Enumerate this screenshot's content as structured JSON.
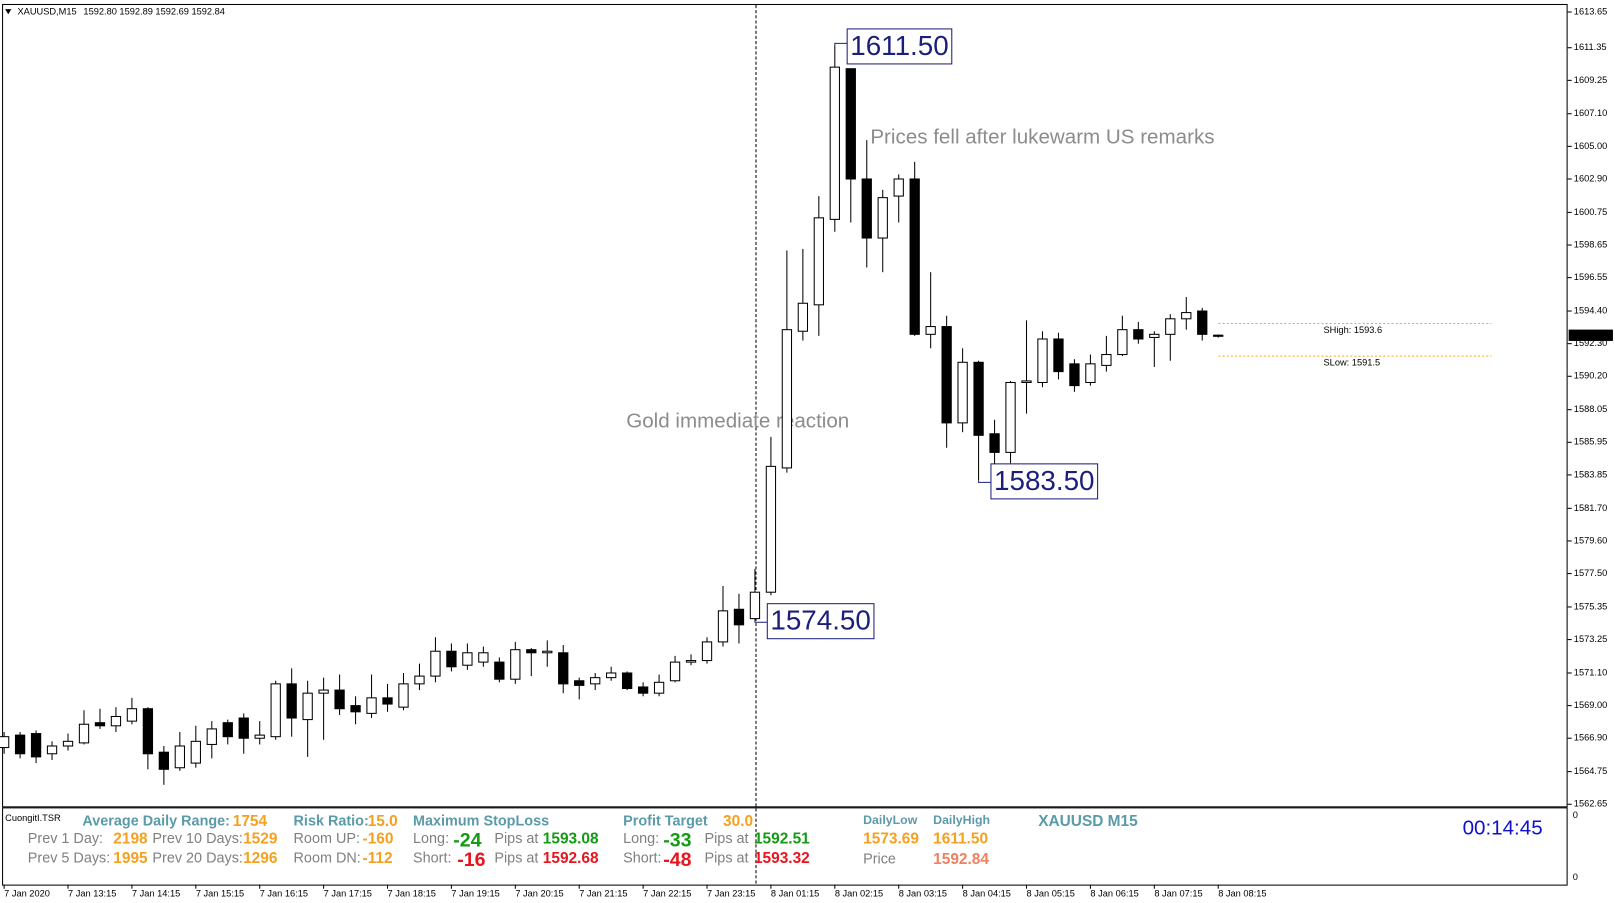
{
  "header": {
    "symbol": "XAUUSD,M15",
    "ohlc": "1592.80 1592.89 1592.69 1592.84"
  },
  "chart_data": {
    "type": "candlestick",
    "categories": [
      "7 Jan 2020",
      null,
      null,
      null,
      "7 Jan 13:15",
      null,
      null,
      null,
      "7 Jan 14:15",
      null,
      null,
      null,
      "7 Jan 15:15",
      null,
      null,
      null,
      "7 Jan 16:15",
      null,
      null,
      null,
      "7 Jan 17:15",
      null,
      null,
      null,
      "7 Jan 18:15",
      null,
      null,
      null,
      "7 Jan 19:15",
      null,
      null,
      null,
      "7 Jan 20:15",
      null,
      null,
      null,
      "7 Jan 21:15",
      null,
      null,
      null,
      "7 Jan 22:15",
      null,
      null,
      null,
      "7 Jan 23:15",
      null,
      null,
      null,
      "8 Jan 01:15",
      null,
      null,
      null,
      "8 Jan 02:15",
      null,
      null,
      null,
      "8 Jan 03:15",
      null,
      null,
      null,
      "8 Jan 04:15",
      null,
      null,
      null,
      "8 Jan 05:15",
      null,
      null,
      null,
      "8 Jan 06:15",
      null,
      null,
      null,
      "8 Jan 07:15",
      null,
      null,
      null,
      "8 Jan 08:15"
    ],
    "open": [
      1566.3,
      1567.1,
      1567.2,
      1565.9,
      1566.4,
      1566.6,
      1567.9,
      1567.7,
      1568.0,
      1568.8,
      1566.0,
      1565.0,
      1565.3,
      1566.5,
      1567.9,
      1568.2,
      1566.9,
      1567.0,
      1570.4,
      1568.1,
      1569.8,
      1570.0,
      1569.0,
      1568.5,
      1569.5,
      1568.9,
      1570.4,
      1570.9,
      1572.5,
      1571.6,
      1571.8,
      1571.8,
      1570.7,
      1572.6,
      1572.4,
      1572.4,
      1570.6,
      1570.4,
      1570.8,
      1571.1,
      1570.2,
      1569.8,
      1570.6,
      1571.8,
      1571.9,
      1573.1,
      1575.2,
      1574.6,
      1576.3,
      1584.3,
      1593.1,
      1594.8,
      1600.3,
      1610.0,
      1602.9,
      1599.1,
      1601.8,
      1602.9,
      1592.9,
      1593.4,
      1587.2,
      1591.1,
      1586.5,
      1585.3,
      1589.8,
      1589.8,
      1592.6,
      1591.0,
      1589.8,
      1590.9,
      1591.6,
      1593.2,
      1592.7,
      1592.9,
      1593.9,
      1594.4,
      1592.8
    ],
    "high": [
      1567.3,
      1567.3,
      1567.4,
      1566.7,
      1567.2,
      1568.7,
      1568.8,
      1568.9,
      1569.5,
      1568.9,
      1566.4,
      1567.3,
      1567.7,
      1568.0,
      1568.1,
      1568.5,
      1568.0,
      1570.6,
      1571.4,
      1570.6,
      1570.8,
      1571.0,
      1569.6,
      1571.0,
      1570.4,
      1571.1,
      1571.7,
      1573.4,
      1573.0,
      1573.0,
      1572.8,
      1572.1,
      1573.1,
      1572.7,
      1573.2,
      1572.9,
      1570.8,
      1571.1,
      1571.5,
      1571.2,
      1570.5,
      1571.0,
      1572.2,
      1572.3,
      1573.4,
      1576.7,
      1576.2,
      1577.8,
      1586.3,
      1598.3,
      1598.4,
      1601.8,
      1611.5,
      1610.0,
      1605.4,
      1602.2,
      1603.2,
      1604.0,
      1596.9,
      1594.1,
      1592.0,
      1591.2,
      1587.4,
      1589.9,
      1593.8,
      1593.1,
      1593.0,
      1591.3,
      1591.6,
      1592.8,
      1594.1,
      1593.7,
      1593.1,
      1594.2,
      1595.3,
      1594.6,
      1592.89
    ],
    "low": [
      1565.9,
      1565.6,
      1565.3,
      1565.5,
      1566.1,
      1566.5,
      1567.5,
      1567.3,
      1567.8,
      1564.9,
      1563.9,
      1564.8,
      1565.0,
      1565.6,
      1566.5,
      1565.9,
      1566.5,
      1566.8,
      1567.0,
      1565.7,
      1566.8,
      1568.4,
      1567.8,
      1568.2,
      1568.6,
      1568.7,
      1570.0,
      1570.5,
      1571.2,
      1571.3,
      1571.5,
      1570.5,
      1570.4,
      1570.9,
      1571.5,
      1569.8,
      1569.4,
      1570.0,
      1570.6,
      1570.0,
      1569.6,
      1569.6,
      1570.5,
      1571.6,
      1571.7,
      1572.8,
      1573.0,
      1574.5,
      1576.1,
      1584.0,
      1592.5,
      1592.8,
      1599.5,
      1600.1,
      1597.2,
      1596.9,
      1600.1,
      1592.8,
      1592.0,
      1585.6,
      1586.6,
      1583.5,
      1583.9,
      1584.6,
      1587.8,
      1589.5,
      1590.0,
      1589.2,
      1589.6,
      1590.5,
      1591.5,
      1592.3,
      1590.8,
      1591.2,
      1593.2,
      1592.5,
      1592.69
    ],
    "close": [
      1567.0,
      1565.9,
      1565.7,
      1566.4,
      1566.7,
      1567.8,
      1567.7,
      1568.3,
      1568.8,
      1565.9,
      1564.9,
      1566.4,
      1566.7,
      1567.5,
      1567.0,
      1566.9,
      1567.1,
      1570.4,
      1568.2,
      1569.8,
      1570.0,
      1568.8,
      1568.6,
      1569.5,
      1569.1,
      1570.4,
      1570.9,
      1572.5,
      1571.5,
      1572.4,
      1572.4,
      1570.7,
      1572.6,
      1572.4,
      1572.5,
      1570.4,
      1570.3,
      1570.8,
      1571.1,
      1570.1,
      1569.8,
      1570.5,
      1571.8,
      1571.9,
      1573.1,
      1575.1,
      1574.2,
      1576.3,
      1584.4,
      1593.2,
      1594.9,
      1600.4,
      1610.1,
      1602.9,
      1599.1,
      1601.7,
      1602.9,
      1592.9,
      1593.4,
      1587.2,
      1591.1,
      1586.4,
      1585.3,
      1589.8,
      1589.9,
      1592.6,
      1590.5,
      1589.6,
      1591.0,
      1591.6,
      1593.2,
      1592.6,
      1592.9,
      1593.9,
      1594.3,
      1592.9,
      1592.84
    ],
    "up_color": "#ffffff",
    "down_color": "#000000",
    "edge_color": "#000000",
    "ylim": [
      1562.45,
      1614.1
    ],
    "yticks": [
      1613.65,
      1611.35,
      1609.25,
      {
        "value": 1607.1,
        "label": "1607.10"
      },
      {
        "value": 1605,
        "label": "1605.00"
      },
      {
        "value": 1602.9,
        "label": "1602.90"
      },
      1600.75,
      1598.65,
      1596.55,
      {
        "value": 1594.4,
        "label": "1594.40"
      },
      {
        "value": 1592.3,
        "label": "1592.30"
      },
      {
        "value": 1590.2,
        "label": "1590.20"
      },
      1588.05,
      1585.95,
      1583.85,
      {
        "value": 1581.7,
        "label": "1581.70"
      },
      {
        "value": 1579.6,
        "label": "1579.60"
      },
      {
        "value": 1577.5,
        "label": "1577.50"
      },
      1575.35,
      1573.25,
      {
        "value": 1571.1,
        "label": "1571.10"
      },
      {
        "value": 1569,
        "label": "1569.00"
      },
      {
        "value": 1566.9,
        "label": "1566.90"
      },
      1564.75,
      1562.65
    ],
    "price_labels": [
      {
        "value": 1611.5,
        "label": "1611.50"
      },
      {
        "value": 1583.5,
        "label": "1583.50"
      },
      {
        "value": 1574.5,
        "label": "1574.50"
      }
    ],
    "levels": [
      {
        "value": 1593.6,
        "label": "SHigh: 1593.6",
        "color": "#f5a623"
      },
      {
        "value": 1591.5,
        "label": "SLow: 1591.5",
        "color": "#f5a623"
      }
    ],
    "notes": [
      "Prices fell after lukewarm US remarks",
      "Gold immediate reaction"
    ]
  },
  "indicator_panel": {
    "name": "CuongitI.TSR",
    "axis_labels": [
      "0",
      "0"
    ],
    "texts": [
      "Average Daily Range:",
      "1754",
      "Risk Ratio:",
      "15.0",
      "Maximum StopLoss",
      "Profit Target",
      "30.0",
      "DailyLow",
      "DailyHigh",
      "XAUUSD M15",
      "00:14:45",
      "Prev 1 Day:",
      "2198",
      "Prev 10 Days:",
      "1529",
      "Room UP:",
      "-160",
      "Long:",
      "-24",
      "Pips at",
      "1593.08",
      "Long:",
      "-33",
      "Pips at",
      "1592.51",
      "1573.69",
      "1611.50",
      "Prev 5 Days:",
      "1995",
      "Prev 20 Days:",
      "1296",
      "Room DN:",
      "-112",
      "Short:",
      "-16",
      "Pips at",
      "1592.68",
      "Short:",
      "-48",
      "Pips at",
      "1593.32",
      "Price",
      "1592.84"
    ]
  }
}
